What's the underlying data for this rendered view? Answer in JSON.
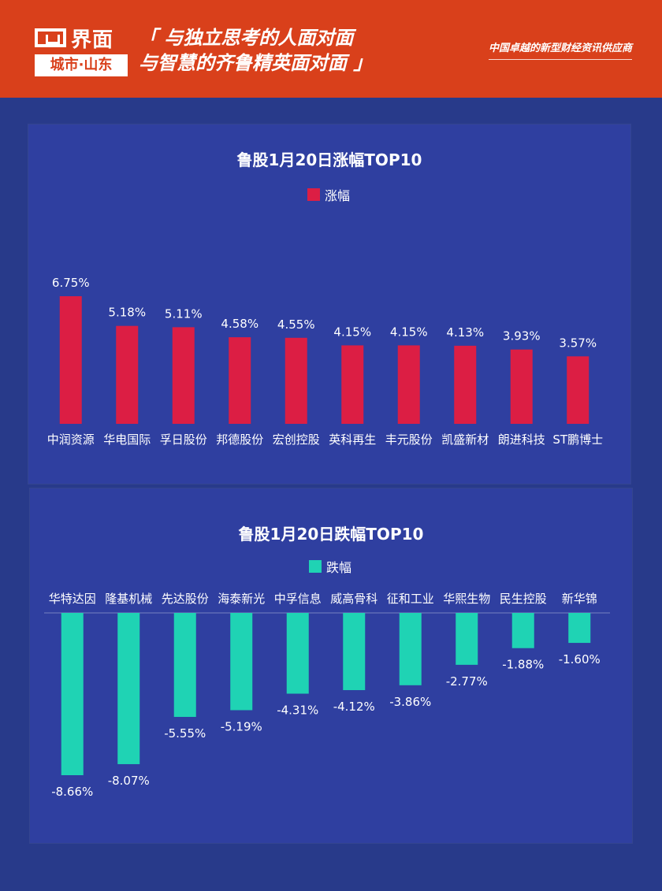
{
  "header": {
    "logo_name": "界面",
    "logo_city": "城市·山东",
    "slogan_line1": "「 与独立思考的人面对面",
    "slogan_line2": "与智慧的齐鲁精英面对面 」",
    "tagline": "中国卓越的新型财经资讯供应商"
  },
  "colors": {
    "gain": "#dc1e44",
    "loss": "#1fd3b4",
    "panel": "#2f3fa0",
    "background": "#283a8a"
  },
  "chart_data": [
    {
      "type": "bar",
      "title": "鲁股1月20日涨幅TOP10",
      "legend": "涨幅",
      "categories": [
        "中润资源",
        "华电国际",
        "孚日股份",
        "邦德股份",
        "宏创控股",
        "英科再生",
        "丰元股份",
        "凯盛新材",
        "朗进科技",
        "ST鹏博士"
      ],
      "values": [
        6.75,
        5.18,
        5.11,
        4.58,
        4.55,
        4.15,
        4.15,
        4.13,
        3.93,
        3.57
      ],
      "labels": [
        "6.75%",
        "5.18%",
        "5.11%",
        "4.58%",
        "4.55%",
        "4.15%",
        "4.15%",
        "4.13%",
        "3.93%",
        "3.57%"
      ],
      "legend_position": "top-center"
    },
    {
      "type": "bar",
      "title": "鲁股1月20日跌幅TOP10",
      "legend": "跌幅",
      "categories": [
        "华特达因",
        "隆基机械",
        "先达股份",
        "海泰新光",
        "中孚信息",
        "威高骨科",
        "征和工业",
        "华熙生物",
        "民生控股",
        "新华锦"
      ],
      "values": [
        -8.66,
        -8.07,
        -5.55,
        -5.19,
        -4.31,
        -4.12,
        -3.86,
        -2.77,
        -1.88,
        -1.6
      ],
      "labels": [
        "-8.66%",
        "-8.07%",
        "-5.55%",
        "-5.19%",
        "-4.31%",
        "-4.12%",
        "-3.86%",
        "-2.77%",
        "-1.88%",
        "-1.60%"
      ],
      "legend_position": "top-center"
    }
  ]
}
